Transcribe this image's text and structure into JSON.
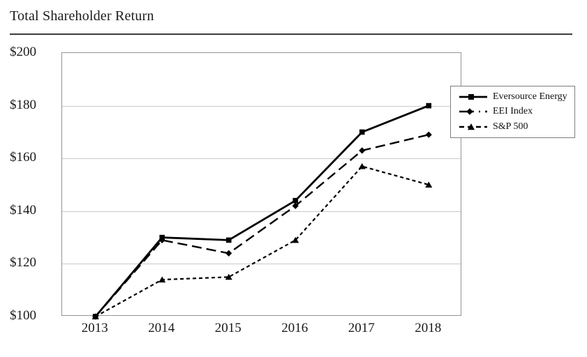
{
  "title": "Total Shareholder Return",
  "chart_data": {
    "type": "line",
    "x": [
      "2013",
      "2014",
      "2015",
      "2016",
      "2017",
      "2018"
    ],
    "series": [
      {
        "name": "Eversource Energy",
        "values": [
          100,
          130,
          129,
          144,
          170,
          180
        ],
        "marker": "square",
        "dash": "solid"
      },
      {
        "name": "EEI Index",
        "values": [
          100,
          129,
          124,
          142,
          163,
          169
        ],
        "marker": "diamond",
        "dash": "long-dash"
      },
      {
        "name": "S&P 500",
        "values": [
          100,
          114,
          115,
          129,
          157,
          150
        ],
        "marker": "triangle",
        "dash": "short-dash"
      }
    ],
    "yticks": [
      "$200",
      "$180",
      "$160",
      "$140",
      "$120",
      "$100"
    ],
    "ytick_values": [
      200,
      180,
      160,
      140,
      120,
      100
    ],
    "ylim": [
      100,
      200
    ],
    "grid": true,
    "legend_position": "right",
    "colors": {
      "series_line": "#000000",
      "gridline": "#c9c9c9",
      "plot_border": "#949494",
      "text": "#1a1a1a"
    }
  }
}
